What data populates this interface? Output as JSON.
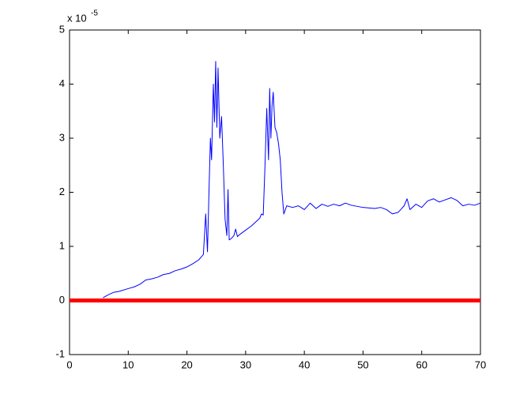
{
  "chart_data": {
    "type": "line",
    "y_scale_label": "x 10",
    "y_scale_exponent": "-5",
    "xlim": [
      0,
      70
    ],
    "xticks": [
      0,
      10,
      20,
      30,
      40,
      50,
      60,
      70
    ],
    "ylim": [
      -1,
      5
    ],
    "yticks": [
      -1,
      0,
      1,
      2,
      3,
      4,
      5
    ],
    "grid": false,
    "series": [
      {
        "color": "#0000ff",
        "linewidth": 1,
        "x": [
          5.7,
          6.5,
          7.5,
          8.5,
          10,
          11,
          12,
          13,
          14,
          15,
          16,
          17,
          18,
          19,
          20,
          21,
          22,
          22.8,
          23.2,
          23.5,
          23.8,
          24,
          24.2,
          24.5,
          24.7,
          24.9,
          25.1,
          25.3,
          25.6,
          25.9,
          26.2,
          26.5,
          26.8,
          27,
          27.2,
          27.6,
          28,
          28.3,
          28.6,
          29,
          30,
          31,
          32,
          32.4,
          32.7,
          33,
          33.3,
          33.6,
          33.9,
          34.1,
          34.3,
          34.5,
          34.7,
          35,
          35.3,
          35.6,
          35.9,
          36.2,
          36.5,
          37,
          38,
          39,
          40,
          41,
          42,
          43,
          44,
          45,
          46,
          47,
          48,
          50,
          52,
          53,
          54,
          55,
          56,
          57,
          57.5,
          58,
          59,
          60,
          61,
          62,
          63,
          64,
          65,
          66,
          67,
          68,
          69,
          70
        ],
        "values": [
          0.05,
          0.1,
          0.15,
          0.17,
          0.22,
          0.25,
          0.3,
          0.38,
          0.4,
          0.43,
          0.48,
          0.5,
          0.55,
          0.58,
          0.62,
          0.68,
          0.75,
          0.85,
          1.6,
          0.9,
          2.2,
          3.0,
          2.6,
          4.0,
          3.3,
          4.42,
          3.2,
          4.3,
          3.0,
          3.4,
          2.5,
          1.5,
          1.2,
          2.05,
          1.12,
          1.15,
          1.2,
          1.32,
          1.18,
          1.22,
          1.3,
          1.38,
          1.48,
          1.52,
          1.6,
          1.58,
          2.5,
          3.55,
          2.6,
          3.92,
          3.0,
          3.6,
          3.85,
          3.2,
          3.1,
          2.9,
          2.6,
          2.0,
          1.6,
          1.75,
          1.72,
          1.75,
          1.68,
          1.8,
          1.7,
          1.78,
          1.74,
          1.78,
          1.75,
          1.8,
          1.76,
          1.72,
          1.7,
          1.72,
          1.68,
          1.6,
          1.63,
          1.75,
          1.88,
          1.68,
          1.78,
          1.72,
          1.84,
          1.88,
          1.82,
          1.86,
          1.9,
          1.85,
          1.75,
          1.78,
          1.76,
          1.8
        ]
      },
      {
        "color": "#ff0000",
        "linewidth": 5,
        "x": [
          0,
          70
        ],
        "values": [
          0,
          0
        ]
      }
    ]
  }
}
